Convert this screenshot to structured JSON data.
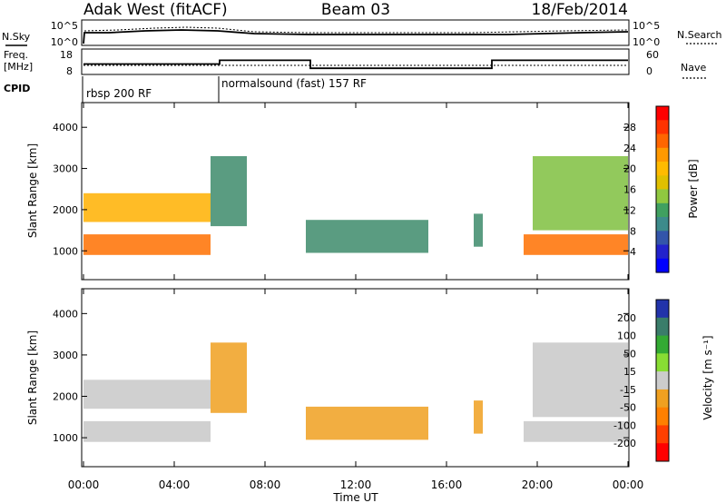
{
  "chart_data": {
    "type": "heatmap",
    "header": {
      "station": "Adak West (fitACF)",
      "beam": "Beam 03",
      "date": "18/Feb/2014"
    },
    "strip_labels": {
      "nsky": "N.Sky",
      "freq_line1": "Freq.",
      "freq_line2": "[MHz]",
      "cpid": "CPID",
      "nsearch": "N.Search",
      "nave": "Nave"
    },
    "strip_axes": {
      "noise_ticks": [
        "10^5",
        "10^0"
      ],
      "freq_ticks": [
        "18",
        "8"
      ],
      "nave_ticks": [
        "60",
        "0"
      ]
    },
    "cpid_segments": [
      {
        "label": "rbsp 200 RF",
        "start_h": 0
      },
      {
        "label": "normalsound (fast) 157 RF",
        "start_h": 6
      }
    ],
    "freq_trace": [
      {
        "t": 0,
        "v": 12.3
      },
      {
        "t": 6,
        "v": 12.3
      },
      {
        "t": 6,
        "v": 14.2
      },
      {
        "t": 10,
        "v": 14.2
      },
      {
        "t": 10,
        "v": 10.2
      },
      {
        "t": 18,
        "v": 10.2
      },
      {
        "t": 18,
        "v": 14.2
      },
      {
        "t": 24,
        "v": 14.2
      }
    ],
    "x_axis": {
      "label": "Time UT",
      "range_h": [
        0,
        24
      ],
      "tick_labels": [
        "00:00",
        "04:00",
        "08:00",
        "12:00",
        "16:00",
        "20:00",
        "00:00"
      ]
    },
    "y_axis": {
      "label": "Slant Range [km]",
      "range_km": [
        300,
        4600
      ],
      "ticks": [
        1000,
        2000,
        3000,
        4000
      ]
    },
    "power_panel": {
      "colorbar_label": "Power [dB]",
      "colorbar_ticks": [
        "28",
        "24",
        "20",
        "16",
        "12",
        "8",
        "4"
      ],
      "colorbar_colors": [
        "#ff0000",
        "#ff3300",
        "#ff6600",
        "#ff9900",
        "#ffbb00",
        "#e0c000",
        "#90c840",
        "#40a060",
        "#3d8b8b",
        "#3355aa",
        "#2222cc",
        "#0000ff"
      ]
    },
    "velocity_panel": {
      "colorbar_label": "Velocity [m s⁻¹]",
      "colorbar_ticks": [
        "200",
        "100",
        "50",
        "15",
        "-15",
        "-50",
        "-100",
        "-200"
      ],
      "colorbar_colors": [
        "#2233aa",
        "#3a7d6a",
        "#33aa33",
        "#88dd33",
        "#cccccc",
        "#f0a020",
        "#ff8000",
        "#ff4000",
        "#ff0000"
      ]
    },
    "echo_regions": [
      {
        "name": "early-low",
        "t": [
          0.0,
          5.6
        ],
        "r_km": [
          900,
          1400
        ],
        "power_db": 26,
        "velocity_ms": -5
      },
      {
        "name": "early-high",
        "t": [
          0.0,
          5.6
        ],
        "r_km": [
          1700,
          2400
        ],
        "power_db": 20,
        "velocity_ms": -5
      },
      {
        "name": "morning-rise",
        "t": [
          5.6,
          7.2
        ],
        "r_km": [
          1600,
          3300
        ],
        "power_db": 14,
        "velocity_ms": -40
      },
      {
        "name": "midday",
        "t": [
          9.8,
          15.2
        ],
        "r_km": [
          950,
          1750
        ],
        "power_db": 12,
        "velocity_ms": -40
      },
      {
        "name": "afternoon-spot",
        "t": [
          17.2,
          17.6
        ],
        "r_km": [
          1100,
          1900
        ],
        "power_db": 14,
        "velocity_ms": -50
      },
      {
        "name": "evening-low",
        "t": [
          19.4,
          24.0
        ],
        "r_km": [
          900,
          1400
        ],
        "power_db": 26,
        "velocity_ms": -5
      },
      {
        "name": "evening-high",
        "t": [
          19.8,
          24.0
        ],
        "r_km": [
          1500,
          3300
        ],
        "power_db": 18,
        "velocity_ms": -5
      }
    ]
  }
}
